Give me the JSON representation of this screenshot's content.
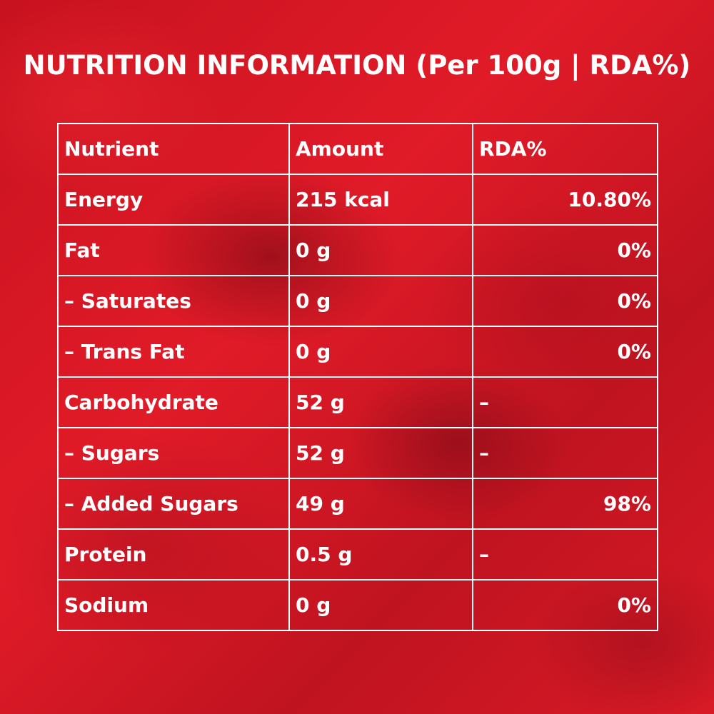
{
  "title": "NUTRITION INFORMATION (Per 100g | RDA%)",
  "table": {
    "headers": [
      "Nutrient",
      "Amount",
      "RDA%"
    ],
    "rows": [
      {
        "nutrient": "Energy",
        "amount": "215 kcal",
        "rda": "10.80%"
      },
      {
        "nutrient": "Fat",
        "amount": "0 g",
        "rda": "0%"
      },
      {
        "nutrient": "– Saturates",
        "amount": "0 g",
        "rda": "0%"
      },
      {
        "nutrient": "– Trans Fat",
        "amount": "0 g",
        "rda": "0%"
      },
      {
        "nutrient": "Carbohydrate",
        "amount": "52 g",
        "rda": "–"
      },
      {
        "nutrient": "– Sugars",
        "amount": "52 g",
        "rda": "–"
      },
      {
        "nutrient": "– Added Sugars",
        "amount": "49 g",
        "rda": "98%"
      },
      {
        "nutrient": "Protein",
        "amount": "0.5 g",
        "rda": "–"
      },
      {
        "nutrient": "Sodium",
        "amount": "0 g",
        "rda": "0%"
      }
    ]
  },
  "colors": {
    "background": "#d81a24",
    "text": "#ffffff",
    "border": "#ffffff"
  }
}
